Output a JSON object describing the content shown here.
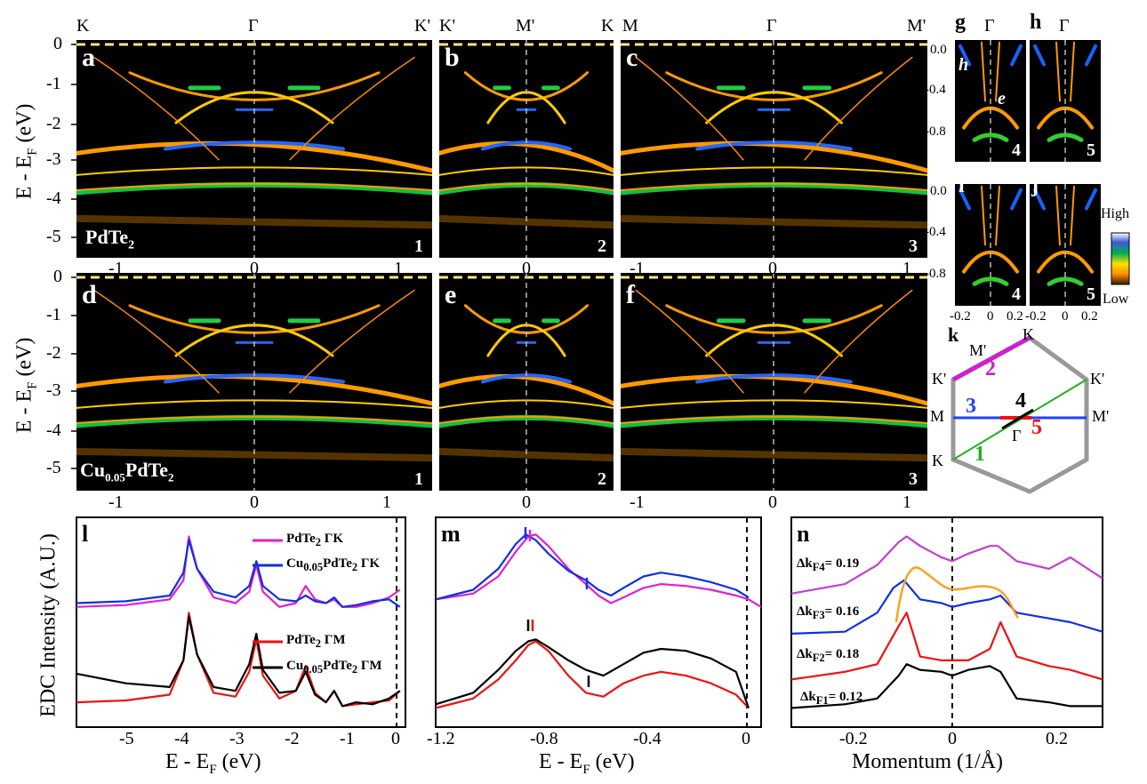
{
  "figure": {
    "top_labels": {
      "a": [
        "K",
        "Γ",
        "K'"
      ],
      "b": [
        "K'",
        "M'",
        "K"
      ],
      "c": [
        "M",
        "Γ",
        "M'"
      ],
      "g": "Γ",
      "h": "Γ"
    },
    "ylabel_main": "E - E",
    "ylabel_sub": "F",
    "ylabel_unit": " (eV)",
    "yticks_main": [
      "0",
      "-1",
      "-2",
      "-3",
      "-4",
      "-5"
    ],
    "yticks_small": [
      "0.0",
      "-0.4",
      "-0.8"
    ],
    "xticks_a": [
      "-1",
      "0",
      "1"
    ],
    "xticks_b": [
      "0"
    ],
    "xticks_c": [
      "-1",
      "0",
      "1"
    ],
    "xticks_small": [
      "-0.2",
      "0",
      "0.2",
      "-0.2",
      "0",
      "0.2"
    ],
    "panel_letters": [
      "a",
      "b",
      "c",
      "d",
      "e",
      "f",
      "g",
      "h",
      "i",
      "j",
      "k",
      "l",
      "m",
      "n"
    ],
    "corner_numbers": [
      "1",
      "2",
      "3",
      "1",
      "2",
      "3",
      "4",
      "5",
      "4",
      "5"
    ],
    "sample_top": {
      "pre": "PdTe",
      "sub": "2"
    },
    "sample_bottom": {
      "pre": "Cu",
      "sub1": "0.05",
      "mid": "PdTe",
      "sub2": "2"
    },
    "g_labels": {
      "h": "h",
      "e": "e"
    },
    "colorbar": {
      "high": "High",
      "low": "Low",
      "colors": [
        "#ffffff",
        "#3a5bd9",
        "#00b050",
        "#ffe000",
        "#ff8c00",
        "#3a1a00"
      ]
    },
    "bz": {
      "labels": {
        "Kt": "K",
        "Mp": "M'",
        "Kp1": "K'",
        "Kp2": "K'",
        "M": "M",
        "Mp2": "M'",
        "G": "Γ",
        "Kb": "K"
      },
      "cuts": {
        "c1": "1",
        "c2": "2",
        "c3": "3",
        "c4": "4",
        "c5": "5"
      },
      "colors": {
        "c1": "#22b022",
        "c2": "#cc22cc",
        "c3": "#2040ff",
        "c4": "#000000",
        "c5": "#ee1111",
        "hex": "#999999"
      }
    },
    "panel_l": {
      "ylabel": "EDC Intensity (A.U.)",
      "xlabel_pre": "E - E",
      "xlabel_sub": "F",
      "xlabel_post": " (eV)",
      "xticks": [
        "-5",
        "-4",
        "-3",
        "-2",
        "-1",
        "0"
      ],
      "legend": [
        {
          "pre": "PdTe",
          "sub": "2",
          "post": " ΓK",
          "color": "#e020d0"
        },
        {
          "pre": "Cu",
          "sub": "0.05",
          "post": "PdTe",
          "sub2": "2",
          "post2": " ΓK",
          "color": "#1030e0"
        },
        {
          "pre": "PdTe",
          "sub": "2",
          "post": " ΓM",
          "color": "#ee1111"
        },
        {
          "pre": "Cu",
          "sub": "0.05",
          "post": "PdTe",
          "sub2": "2",
          "post2": " ΓM",
          "color": "#000000"
        }
      ]
    },
    "panel_m": {
      "xlabel_pre": "E - E",
      "xlabel_sub": "F",
      "xlabel_post": " (eV)",
      "xticks": [
        "-1.2",
        "-0.8",
        "-0.4",
        "0"
      ]
    },
    "panel_n": {
      "xlabel": "Momentum (1/Å)",
      "xticks": [
        "-0.2",
        "0",
        "0.2"
      ],
      "dkf": [
        {
          "pre": "Δk",
          "sub": "F4",
          "post": "= 0.19"
        },
        {
          "pre": "Δk",
          "sub": "F3",
          "post": "= 0.16"
        },
        {
          "pre": "Δk",
          "sub": "F2",
          "post": "= 0.18"
        },
        {
          "pre": "Δk",
          "sub": "F1",
          "post": "= 0.12"
        }
      ]
    }
  },
  "chart_data": [
    {
      "type": "line",
      "title": "l",
      "xlabel": "E - EF (eV)",
      "ylabel": "EDC Intensity (A.U.)",
      "xlim": [
        -5.9,
        0.1
      ],
      "series": [
        {
          "name": "PdTe2 ΓK",
          "color": "#e020d0",
          "x": [
            -5.9,
            -5.0,
            -4.2,
            -3.95,
            -3.85,
            -3.7,
            -3.4,
            -3.0,
            -2.75,
            -2.62,
            -2.5,
            -2.2,
            -1.9,
            -1.72,
            -1.55,
            -1.35,
            -1.2,
            -1.05,
            -0.8,
            -0.5,
            -0.2,
            0.0
          ],
          "y": [
            0.58,
            0.59,
            0.62,
            0.72,
            0.95,
            0.78,
            0.63,
            0.6,
            0.66,
            0.8,
            0.66,
            0.58,
            0.6,
            0.69,
            0.62,
            0.6,
            0.62,
            0.58,
            0.58,
            0.6,
            0.63,
            0.67
          ]
        },
        {
          "name": "Cu0.05PdTe2 ΓK",
          "color": "#1030e0",
          "x": [
            -5.9,
            -5.0,
            -4.2,
            -3.95,
            -3.85,
            -3.7,
            -3.4,
            -3.0,
            -2.75,
            -2.62,
            -2.5,
            -2.2,
            -1.9,
            -1.72,
            -1.55,
            -1.35,
            -1.2,
            -1.05,
            -0.8,
            -0.5,
            -0.2,
            0.0
          ],
          "y": [
            0.6,
            0.61,
            0.64,
            0.76,
            0.93,
            0.78,
            0.66,
            0.63,
            0.69,
            0.82,
            0.69,
            0.62,
            0.61,
            0.64,
            0.61,
            0.6,
            0.63,
            0.58,
            0.59,
            0.61,
            0.62,
            0.58
          ]
        },
        {
          "name": "PdTe2 ΓM",
          "color": "#ee1111",
          "x": [
            -5.9,
            -5.0,
            -4.2,
            -3.95,
            -3.85,
            -3.7,
            -3.4,
            -3.0,
            -2.75,
            -2.62,
            -2.5,
            -2.2,
            -1.9,
            -1.72,
            -1.55,
            -1.35,
            -1.2,
            -1.05,
            -0.8,
            -0.5,
            -0.2,
            0.0
          ],
          "y": [
            0.08,
            0.09,
            0.12,
            0.3,
            0.55,
            0.33,
            0.13,
            0.11,
            0.24,
            0.41,
            0.22,
            0.1,
            0.14,
            0.27,
            0.13,
            0.08,
            0.14,
            0.06,
            0.07,
            0.08,
            0.09,
            0.14
          ]
        },
        {
          "name": "Cu0.05PdTe2 ΓM",
          "color": "#000000",
          "x": [
            -5.9,
            -5.0,
            -4.2,
            -3.95,
            -3.85,
            -3.7,
            -3.4,
            -3.0,
            -2.75,
            -2.62,
            -2.5,
            -2.2,
            -1.9,
            -1.72,
            -1.55,
            -1.35,
            -1.2,
            -1.05,
            -0.8,
            -0.5,
            -0.2,
            0.0
          ],
          "y": [
            0.23,
            0.18,
            0.16,
            0.3,
            0.53,
            0.33,
            0.16,
            0.14,
            0.28,
            0.44,
            0.25,
            0.13,
            0.14,
            0.24,
            0.12,
            0.08,
            0.14,
            0.06,
            0.08,
            0.07,
            0.1,
            0.14
          ]
        }
      ]
    },
    {
      "type": "line",
      "title": "m",
      "xlabel": "E - EF (eV)",
      "xlim": [
        -1.25,
        0.05
      ],
      "series": [
        {
          "name": "PdTe2 ΓK",
          "color": "#e020d0",
          "x": [
            -1.25,
            -1.1,
            -1.0,
            -0.93,
            -0.88,
            -0.85,
            -0.8,
            -0.72,
            -0.65,
            -0.6,
            -0.55,
            -0.5,
            -0.42,
            -0.35,
            -0.25,
            -0.15,
            -0.05,
            0.0,
            0.05
          ],
          "y": [
            0.62,
            0.65,
            0.74,
            0.87,
            0.95,
            0.96,
            0.9,
            0.78,
            0.7,
            0.64,
            0.6,
            0.63,
            0.68,
            0.7,
            0.69,
            0.67,
            0.64,
            0.62,
            0.58
          ]
        },
        {
          "name": "Cu0.05PdTe2 ΓK",
          "color": "#1030e0",
          "x": [
            -1.25,
            -1.1,
            -1.0,
            -0.93,
            -0.89,
            -0.85,
            -0.8,
            -0.72,
            -0.65,
            -0.6,
            -0.55,
            -0.5,
            -0.42,
            -0.35,
            -0.25,
            -0.15,
            -0.05,
            0.0
          ],
          "y": [
            0.62,
            0.67,
            0.78,
            0.91,
            0.96,
            0.93,
            0.86,
            0.77,
            0.72,
            0.67,
            0.64,
            0.68,
            0.74,
            0.76,
            0.74,
            0.71,
            0.67,
            0.63
          ]
        },
        {
          "name": "PdTe2 ΓM",
          "color": "#ee1111",
          "x": [
            -1.25,
            -1.1,
            -1.0,
            -0.93,
            -0.88,
            -0.85,
            -0.8,
            -0.72,
            -0.65,
            -0.58,
            -0.5,
            -0.42,
            -0.35,
            -0.25,
            -0.15,
            -0.05,
            0.0
          ],
          "y": [
            0.05,
            0.1,
            0.2,
            0.3,
            0.38,
            0.4,
            0.35,
            0.22,
            0.13,
            0.11,
            0.18,
            0.22,
            0.24,
            0.22,
            0.18,
            0.12,
            0.05
          ]
        },
        {
          "name": "Cu0.05PdTe2 ΓM",
          "color": "#000000",
          "x": [
            -1.25,
            -1.1,
            -1.0,
            -0.93,
            -0.88,
            -0.85,
            -0.8,
            -0.72,
            -0.65,
            -0.58,
            -0.5,
            -0.42,
            -0.35,
            -0.25,
            -0.15,
            -0.05,
            0.0
          ],
          "y": [
            0.07,
            0.13,
            0.25,
            0.35,
            0.4,
            0.41,
            0.37,
            0.3,
            0.25,
            0.22,
            0.28,
            0.34,
            0.36,
            0.35,
            0.31,
            0.24,
            0.05
          ]
        }
      ]
    },
    {
      "type": "line",
      "title": "n",
      "xlabel": "Momentum (1/Å)",
      "xlim": [
        -0.3,
        0.28
      ],
      "series": [
        {
          "name": "kF4 (purple)",
          "color": "#c040d0",
          "x": [
            -0.3,
            -0.2,
            -0.14,
            -0.1,
            -0.085,
            -0.06,
            -0.02,
            0.0,
            0.03,
            0.07,
            0.085,
            0.12,
            0.18,
            0.22,
            0.28
          ],
          "y": [
            0.65,
            0.7,
            0.8,
            0.92,
            0.95,
            0.9,
            0.84,
            0.82,
            0.86,
            0.9,
            0.9,
            0.82,
            0.78,
            0.84,
            0.73
          ]
        },
        {
          "name": "kF3 (blue)",
          "color": "#1030e0",
          "x": [
            -0.3,
            -0.2,
            -0.14,
            -0.11,
            -0.09,
            -0.06,
            -0.02,
            0.0,
            0.03,
            0.07,
            0.09,
            0.12,
            0.18,
            0.22,
            0.28
          ],
          "y": [
            0.44,
            0.45,
            0.55,
            0.68,
            0.72,
            0.62,
            0.6,
            0.58,
            0.6,
            0.62,
            0.64,
            0.55,
            0.52,
            0.5,
            0.45
          ]
        },
        {
          "name": "kF2 (red)",
          "color": "#ee1111",
          "x": [
            -0.3,
            -0.2,
            -0.14,
            -0.1,
            -0.085,
            -0.06,
            -0.02,
            0.0,
            0.03,
            0.07,
            0.09,
            0.12,
            0.18,
            0.22,
            0.28
          ],
          "y": [
            0.2,
            0.24,
            0.28,
            0.48,
            0.55,
            0.32,
            0.3,
            0.3,
            0.3,
            0.36,
            0.5,
            0.32,
            0.27,
            0.25,
            0.2
          ]
        },
        {
          "name": "kF1 (black)",
          "color": "#000000",
          "x": [
            -0.3,
            -0.2,
            -0.14,
            -0.1,
            -0.085,
            -0.06,
            -0.02,
            0.0,
            0.03,
            0.07,
            0.09,
            0.12,
            0.18,
            0.22,
            0.28
          ],
          "y": [
            0.05,
            0.07,
            0.1,
            0.22,
            0.28,
            0.25,
            0.24,
            0.22,
            0.25,
            0.27,
            0.24,
            0.1,
            0.08,
            0.06,
            0.06
          ]
        }
      ]
    }
  ]
}
